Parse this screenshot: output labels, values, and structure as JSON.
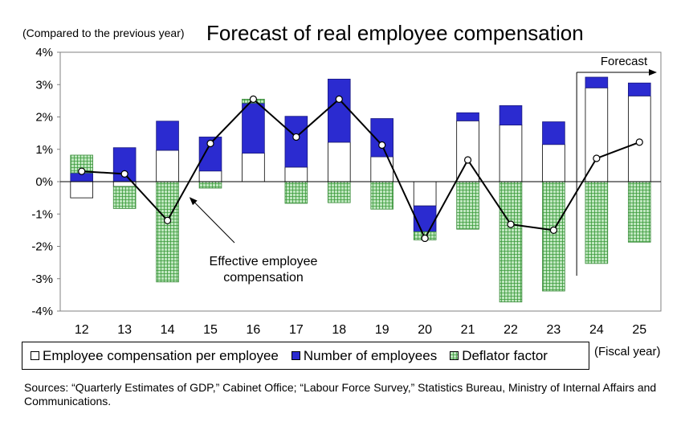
{
  "header": {
    "units_note": "(Compared to the previous year)",
    "title": "Forecast of real employee compensation"
  },
  "x_unit": "(Fiscal year)",
  "legend": {
    "items": [
      {
        "label": "Employee compensation per employee",
        "color": "#ffffff"
      },
      {
        "label": "Number of employees",
        "color": "#2b2bd0"
      },
      {
        "label": "Deflator factor",
        "color": "#bfe6bf"
      }
    ]
  },
  "source": "Sources: “Quarterly Estimates of GDP,” Cabinet Office; “Labour Force Survey,” Statistics Bureau, Ministry of Internal Affairs and Communications.",
  "chart_data": {
    "type": "bar",
    "stacked": true,
    "categories": [
      "12",
      "13",
      "14",
      "15",
      "16",
      "17",
      "18",
      "19",
      "20",
      "21",
      "22",
      "23",
      "24",
      "25"
    ],
    "ylim": [
      -4,
      4
    ],
    "yticks": [
      -4,
      -3,
      -2,
      -1,
      0,
      1,
      2,
      3,
      4
    ],
    "ytick_labels": [
      "-4%",
      "-3%",
      "-2%",
      "-1%",
      "0%",
      "1%",
      "2%",
      "3%",
      "4%"
    ],
    "series": [
      {
        "name": "Employee compensation per employee",
        "color": "#ffffff",
        "values": [
          -0.5,
          -0.15,
          0.97,
          0.33,
          0.88,
          0.45,
          1.22,
          0.77,
          -0.75,
          1.88,
          1.75,
          1.15,
          2.9,
          2.65
        ]
      },
      {
        "name": "Number of employees",
        "color": "#2b2bd0",
        "values": [
          0.27,
          1.05,
          0.9,
          1.05,
          1.55,
          1.57,
          1.95,
          1.18,
          -0.8,
          0.25,
          0.6,
          0.7,
          0.33,
          0.4
        ]
      },
      {
        "name": "Deflator factor",
        "color": "#bfe6bf",
        "values": [
          0.55,
          -0.68,
          -3.1,
          -0.2,
          0.12,
          -0.67,
          -0.65,
          -0.85,
          -0.25,
          -1.47,
          -3.72,
          -3.38,
          -2.53,
          -1.87
        ]
      }
    ],
    "line": {
      "name": "Effective employee compensation",
      "values": [
        0.32,
        0.24,
        -1.2,
        1.18,
        2.55,
        1.38,
        2.55,
        1.13,
        -1.75,
        0.67,
        -1.32,
        -1.5,
        0.72,
        1.22
      ]
    },
    "annotations": [
      {
        "text": "Effective employee compensation",
        "lines": [
          "Effective employee",
          "compensation"
        ]
      },
      {
        "text": "Forecast"
      }
    ],
    "grid": false,
    "legend_position": "bottom"
  }
}
